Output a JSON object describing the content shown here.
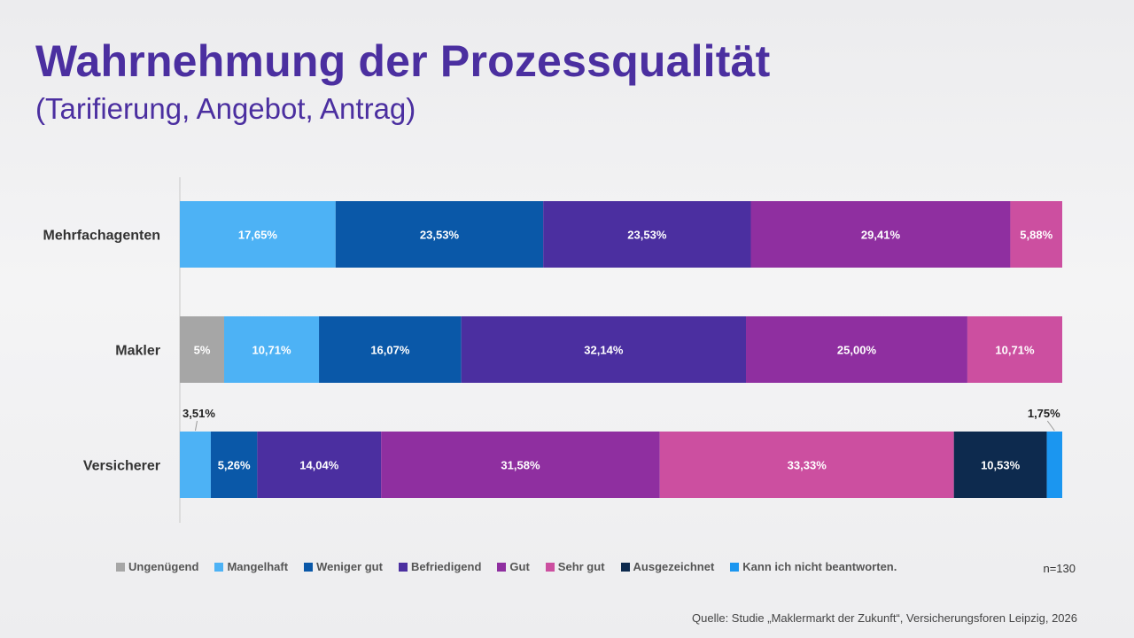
{
  "header": {
    "title": "Wahrnehmung der Prozessqualität",
    "subtitle": "(Tarifierung, Angebot, Antrag)"
  },
  "chart_data": {
    "type": "bar",
    "orientation": "horizontal",
    "stacked": true,
    "title": "Wahrnehmung der Prozessqualität",
    "subtitle": "(Tarifierung, Angebot, Antrag)",
    "categories": [
      "Mehrfachagenten",
      "Makler",
      "Versicherer"
    ],
    "series": [
      {
        "name": "Ungenügend",
        "color": "#a6a6a6",
        "values": [
          0,
          5.0,
          0
        ],
        "labels": [
          "",
          "5%",
          ""
        ]
      },
      {
        "name": "Mangelhaft",
        "color": "#4db2f5",
        "values": [
          17.65,
          10.71,
          3.51
        ],
        "labels": [
          "17,65%",
          "10,71%",
          "3,51%"
        ]
      },
      {
        "name": "Weniger gut",
        "color": "#0a58a8",
        "values": [
          23.53,
          16.07,
          5.26
        ],
        "labels": [
          "23,53%",
          "16,07%",
          "5,26%"
        ]
      },
      {
        "name": "Befriedigend",
        "color": "#4b2fa0",
        "values": [
          23.53,
          32.14,
          14.04
        ],
        "labels": [
          "23,53%",
          "32,14%",
          "14,04%"
        ]
      },
      {
        "name": "Gut",
        "color": "#8f2fa0",
        "values": [
          29.41,
          25.0,
          31.58
        ],
        "labels": [
          "29,41%",
          "25,00%",
          "31,58%"
        ]
      },
      {
        "name": "Sehr gut",
        "color": "#cc4fa0",
        "values": [
          5.88,
          10.71,
          33.33
        ],
        "labels": [
          "5,88%",
          "10,71%",
          "33,33%"
        ]
      },
      {
        "name": "Ausgezeichnet",
        "color": "#0d2a4e",
        "values": [
          0,
          0,
          10.53
        ],
        "labels": [
          "",
          "",
          "10,53%"
        ]
      },
      {
        "name": "Kann ich nicht beantworten.",
        "color": "#1b96f0",
        "values": [
          0,
          0,
          1.75
        ],
        "labels": [
          "",
          "",
          "1,75%"
        ]
      }
    ],
    "xlim": [
      0,
      100
    ],
    "legend": "bottom"
  },
  "footer": {
    "n": "n=130",
    "source": "Quelle: Studie „Maklermarkt der Zukunft“, Versicherungsforen Leipzig, 2026"
  }
}
